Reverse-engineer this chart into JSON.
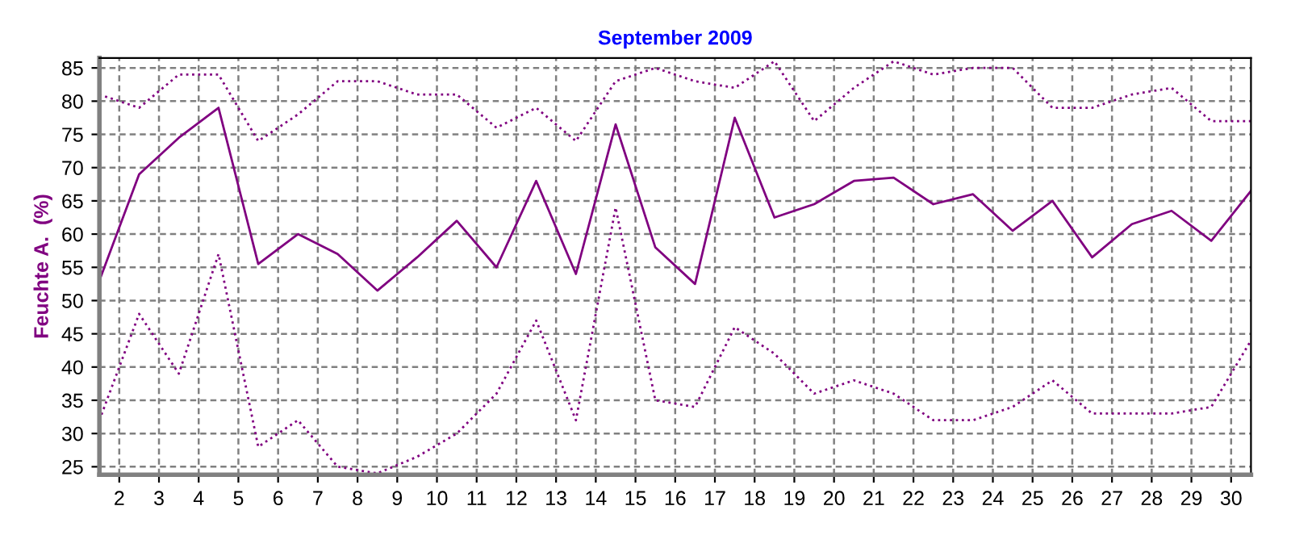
{
  "chart_data": {
    "type": "line",
    "title": "September 2009",
    "ylabel": "Feuchte A.  (%)",
    "x": [
      1.5,
      2.5,
      3.5,
      4.5,
      5.5,
      6.5,
      7.5,
      8.5,
      9.5,
      10.5,
      11.5,
      12.5,
      13.5,
      14.5,
      15.5,
      16.5,
      17.5,
      18.5,
      19.5,
      20.5,
      21.5,
      22.5,
      23.5,
      24.5,
      25.5,
      26.5,
      27.5,
      28.5,
      29.5,
      30.5
    ],
    "series": [
      {
        "color": "#800080",
        "line_style": "dotted",
        "values": [
          81,
          79,
          84,
          84,
          74,
          78,
          83,
          83,
          81,
          81,
          76,
          79,
          74,
          83,
          85,
          83,
          82,
          86,
          77,
          82,
          86,
          84,
          85,
          85,
          79,
          79,
          81,
          82,
          77,
          77
        ]
      },
      {
        "color": "#800080",
        "line_style": "solid",
        "values": [
          53,
          69,
          74.5,
          79,
          55.5,
          60,
          57,
          51.5,
          56.5,
          62,
          55,
          68,
          54,
          76.5,
          58,
          52.5,
          77.5,
          62.5,
          64.5,
          68,
          68.5,
          64.5,
          66,
          60.5,
          65,
          56.5,
          61.5,
          63.5,
          59,
          66.5
        ]
      },
      {
        "color": "#800080",
        "line_style": "dotted",
        "values": [
          32,
          48,
          39,
          57,
          28,
          32,
          25,
          24,
          26.5,
          30,
          36,
          47,
          32,
          64,
          35,
          34,
          46,
          42,
          36,
          38,
          36,
          32,
          32,
          34,
          38,
          33,
          33,
          33,
          34,
          44
        ]
      }
    ],
    "xlim": [
      1.5,
      30.5
    ],
    "xticks": [
      2,
      3,
      4,
      5,
      6,
      7,
      8,
      9,
      10,
      11,
      12,
      13,
      14,
      15,
      16,
      17,
      18,
      19,
      20,
      21,
      22,
      23,
      24,
      25,
      26,
      27,
      28,
      29,
      30
    ],
    "ylim": [
      23.8,
      86.5
    ],
    "yticks": [
      25,
      30,
      35,
      40,
      45,
      50,
      55,
      60,
      65,
      70,
      75,
      80,
      85
    ],
    "grid": true,
    "legend": false,
    "marker": "none"
  }
}
